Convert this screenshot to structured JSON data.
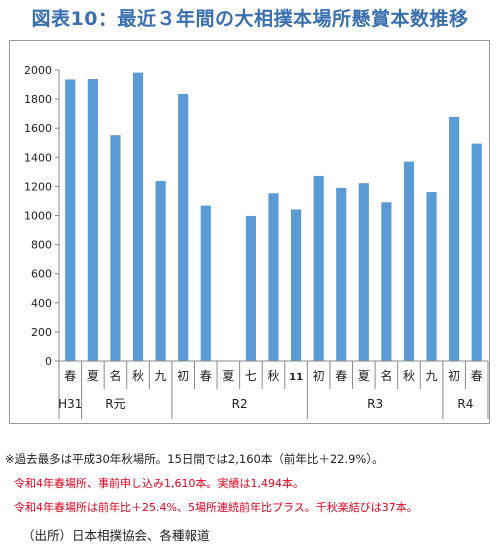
{
  "chart_data": {
    "type": "bar",
    "title": "図表10：最近３年間の大相撲本場所懸賞本数推移",
    "categories": [
      "春",
      "夏",
      "名",
      "秋",
      "九",
      "初",
      "春",
      "夏",
      "七",
      "秋",
      "11",
      "初",
      "春",
      "夏",
      "名",
      "秋",
      "九",
      "初",
      "春"
    ],
    "values": [
      1935,
      1938,
      1552,
      1982,
      1237,
      1835,
      1068,
      0,
      997,
      1153,
      1041,
      1272,
      1190,
      1222,
      1091,
      1370,
      1161,
      1678,
      1494
    ],
    "groups": [
      {
        "label": "H31",
        "start": 0,
        "end": 0
      },
      {
        "label": "R元",
        "start": 1,
        "end": 4
      },
      {
        "label": "R2",
        "start": 5,
        "end": 10
      },
      {
        "label": "R3",
        "start": 11,
        "end": 16
      },
      {
        "label": "R4",
        "start": 17,
        "end": 18
      }
    ],
    "ylim": [
      0,
      2000
    ],
    "yticks": [
      0,
      200,
      400,
      600,
      800,
      1000,
      1200,
      1400,
      1600,
      1800,
      2000
    ],
    "grid": false,
    "bar_color": "#5b9bd5"
  },
  "notes": {
    "note1": "※過去最多は平成30年秋場所。15日間では2,160本（前年比＋22.9%）。",
    "note2": "令和4年春場所、事前申し込み1,610本。実績は1,494本。",
    "note3": "令和4年春場所は前年比＋25.4%、5場所連続前年比プラス。千秋楽結びは37本。"
  },
  "source": "（出所）日本相撲協会、各種報道"
}
